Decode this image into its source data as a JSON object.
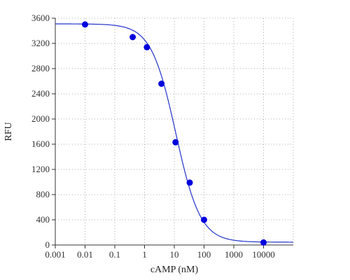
{
  "chart_data": {
    "type": "scatter",
    "title": "",
    "xlabel": "cAMP (nM)",
    "ylabel": "RFU",
    "x_scale": "log",
    "xlim": [
      0.001,
      100000
    ],
    "ylim": [
      0,
      3600
    ],
    "x_ticks": [
      "0.001",
      "0.01",
      "0.1",
      "1",
      "10",
      "100",
      "1000",
      "10000"
    ],
    "y_ticks": [
      "0",
      "400",
      "800",
      "1200",
      "1600",
      "2000",
      "2400",
      "2800",
      "3200",
      "3600"
    ],
    "grid": true,
    "legend": "none",
    "series": [
      {
        "points": [
          {
            "x": 0.01,
            "y": 3500
          },
          {
            "x": 0.4,
            "y": 3300
          },
          {
            "x": 1.2,
            "y": 3140
          },
          {
            "x": 3.7,
            "y": 2560
          },
          {
            "x": 11,
            "y": 1630
          },
          {
            "x": 33,
            "y": 990
          },
          {
            "x": 100,
            "y": 400
          },
          {
            "x": 10000,
            "y": 40
          }
        ]
      }
    ],
    "fit_curve": {
      "model": "4PL",
      "top": 3510,
      "bottom": 45,
      "ic50": 11.2,
      "hill": 1.05
    },
    "colors": {
      "points": "#0000dd",
      "curve": "#2233cc",
      "axis": "#333333",
      "grid": "#999999"
    }
  }
}
